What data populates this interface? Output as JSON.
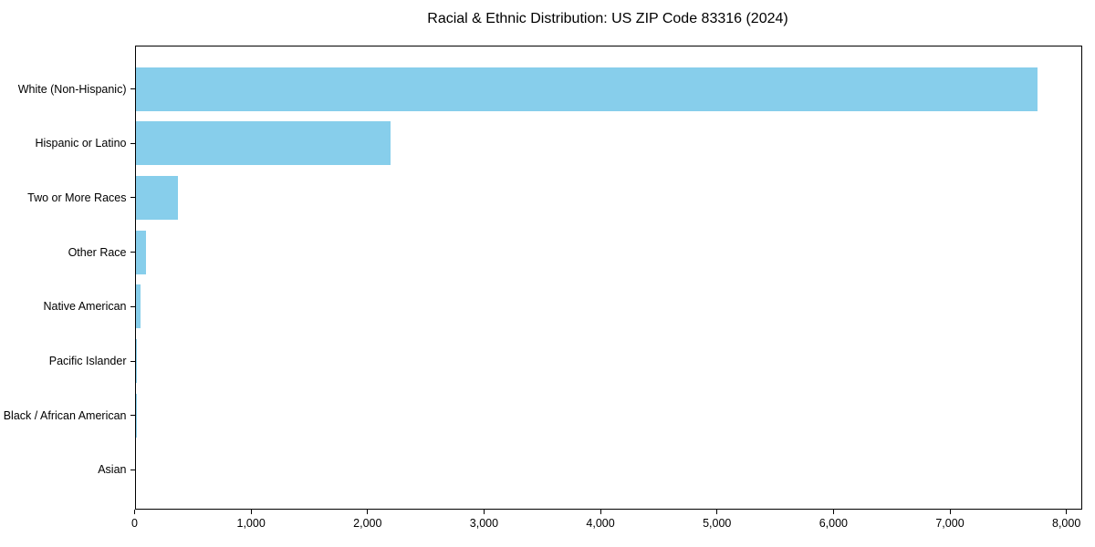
{
  "chart_data": {
    "type": "bar",
    "orientation": "horizontal",
    "title": "Racial & Ethnic Distribution: US ZIP Code 83316 (2024)",
    "xlabel": "",
    "ylabel": "",
    "categories": [
      "White (Non-Hispanic)",
      "Hispanic or Latino",
      "Two or More Races",
      "Other Race",
      "Native American",
      "Pacific Islander",
      "Black / African American",
      "Asian"
    ],
    "values": [
      7745,
      2187,
      363,
      93,
      47,
      8,
      8,
      0
    ],
    "xlim": [
      0,
      8132
    ],
    "x_ticks": [
      0,
      1000,
      2000,
      3000,
      4000,
      5000,
      6000,
      7000,
      8000
    ],
    "x_tick_labels": [
      "0",
      "1,000",
      "2,000",
      "3,000",
      "4,000",
      "5,000",
      "6,000",
      "7,000",
      "8,000"
    ],
    "grid": false,
    "legend": "none",
    "bar_color": "#87CEEB",
    "frame_color": "#000000",
    "text_color": "#000000",
    "background_color": "#ffffff"
  }
}
